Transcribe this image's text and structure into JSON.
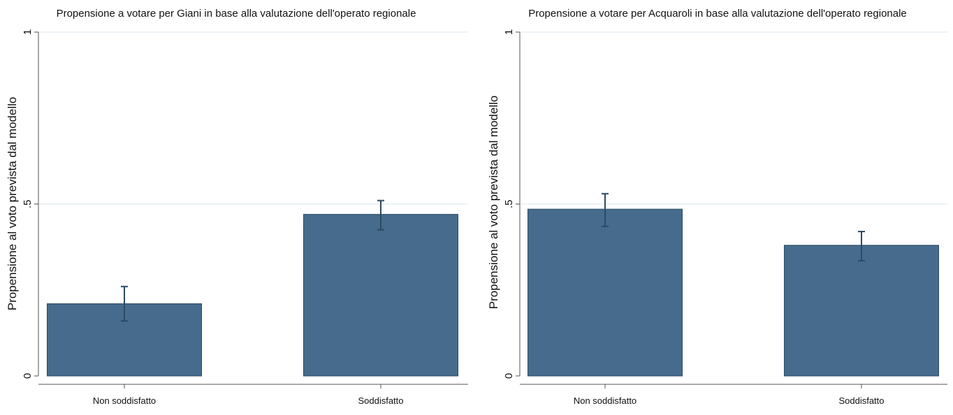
{
  "colors": {
    "bar_fill": "#466b8c",
    "bar_stroke": "#2c4a66",
    "error_bar": "#2c4a66",
    "gridline": "#e6eef3",
    "axis": "#555555"
  },
  "chart_data": [
    {
      "type": "bar",
      "title": "Propensione a votare per Giani in base alla valutazione dell'operato regionale",
      "xlabel": "",
      "ylabel": "Propensione al voto prevista dal modello",
      "categories": [
        "Non soddisfatto",
        "Soddisfatto"
      ],
      "values": [
        0.21,
        0.47
      ],
      "ci_lower": [
        0.16,
        0.425
      ],
      "ci_upper": [
        0.26,
        0.51
      ],
      "ylim": [
        0,
        1
      ],
      "yticks": [
        0,
        0.5,
        1
      ],
      "ytick_labels": [
        "0",
        ".5",
        "1"
      ],
      "grid": true
    },
    {
      "type": "bar",
      "title": "Propensione a votare per Acquaroli in base alla valutazione dell'operato regionale",
      "xlabel": "",
      "ylabel": "Propensione al voto prevista dal modello",
      "categories": [
        "Non soddisfatto",
        "Soddisfatto"
      ],
      "values": [
        0.485,
        0.38
      ],
      "ci_lower": [
        0.435,
        0.335
      ],
      "ci_upper": [
        0.53,
        0.42
      ],
      "ylim": [
        0,
        1
      ],
      "yticks": [
        0,
        0.5,
        1
      ],
      "ytick_labels": [
        "0",
        ".5",
        "1"
      ],
      "grid": true
    }
  ]
}
